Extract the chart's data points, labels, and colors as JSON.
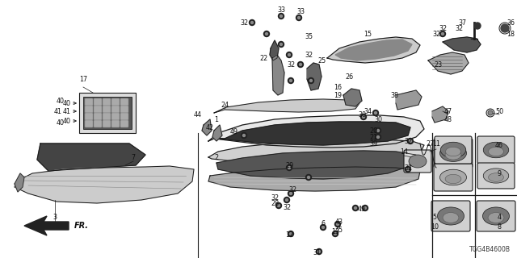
{
  "bg_color": "#ffffff",
  "line_color": "#1a1a1a",
  "fig_width": 6.4,
  "fig_height": 3.2,
  "dpi": 100,
  "diagram_label": "TGG4B4600B",
  "label_fontsize": 5.8,
  "label_color": "#111111"
}
